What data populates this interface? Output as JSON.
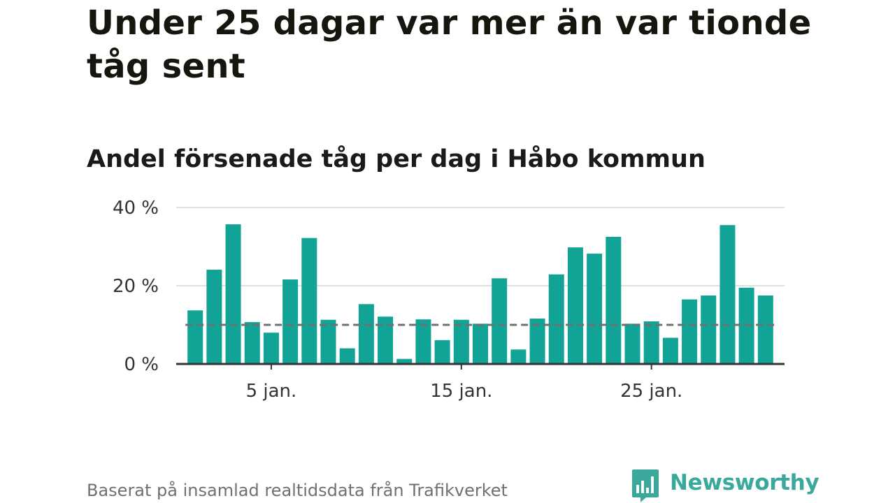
{
  "title": "Under 25 dagar var mer än var tionde tåg sent",
  "source": "Baserat på insamlad realtidsdata från Trafikverket",
  "brand": {
    "name": "Newsworthy",
    "icon": "newsworthy-logo-icon",
    "color": "#3aa89a"
  },
  "chart_data": {
    "type": "bar",
    "title": "Andel försenade tåg per dag i Håbo kommun",
    "xlabel": "",
    "ylabel": "",
    "x": [
      1,
      2,
      3,
      4,
      5,
      6,
      7,
      8,
      9,
      10,
      11,
      12,
      13,
      14,
      15,
      16,
      17,
      18,
      19,
      20,
      21,
      22,
      23,
      24,
      25,
      26,
      27,
      28,
      29,
      30,
      31
    ],
    "values": [
      13.7,
      24.1,
      35.7,
      10.7,
      8.0,
      21.6,
      32.2,
      11.3,
      4.0,
      15.3,
      12.1,
      1.3,
      11.4,
      6.1,
      11.3,
      10.3,
      21.9,
      3.7,
      11.6,
      22.9,
      29.8,
      28.2,
      32.5,
      10.3,
      10.9,
      6.7,
      16.5,
      17.5,
      35.5,
      19.5,
      17.5
    ],
    "x_ticks": [
      {
        "x": 5,
        "label": "5 jan."
      },
      {
        "x": 15,
        "label": "15 jan."
      },
      {
        "x": 25,
        "label": "25 jan."
      }
    ],
    "y_ticks": [
      {
        "value": 0,
        "label": "0 %"
      },
      {
        "value": 20,
        "label": "20 %"
      },
      {
        "value": 40,
        "label": "40 %"
      }
    ],
    "ylim": [
      0,
      40
    ],
    "xlim": [
      0,
      32
    ],
    "reference_line": 10,
    "bar_color": "#11a396",
    "reference_color": "#707070",
    "grid_color": "#e0e0e0",
    "axis_color": "#333333",
    "grid": true,
    "legend": "none"
  }
}
